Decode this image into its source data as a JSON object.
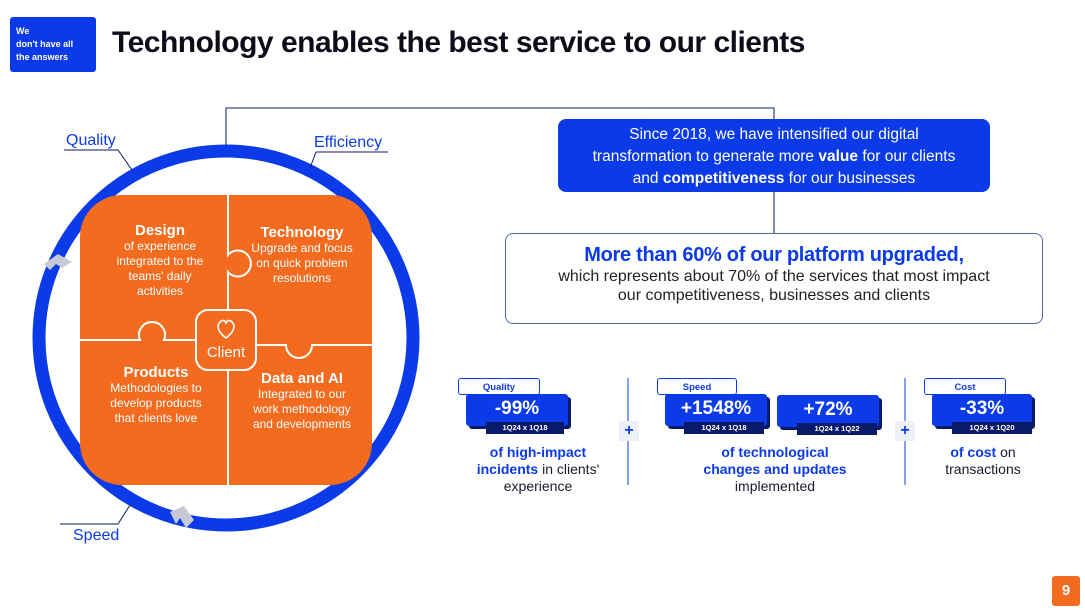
{
  "badge": {
    "line1": "We",
    "line2": "don't have all",
    "line3": "the answers"
  },
  "title": "Technology enables the best service to our clients",
  "circle": {
    "labels": {
      "quality": "Quality",
      "efficiency": "Efficiency",
      "speed": "Speed"
    },
    "center": "Client",
    "pieces": {
      "design": {
        "heading": "Design",
        "l1": "of experience",
        "l2": "integrated to the",
        "l3": "teams' daily",
        "l4": "activities"
      },
      "technology": {
        "heading": "Technology",
        "l1": "Upgrade and focus",
        "l2": "on quick problem",
        "l3": "resolutions"
      },
      "products": {
        "heading": "Products",
        "l1": "Methodologies to",
        "l2": "develop products",
        "l3": "that clients love"
      },
      "data_ai": {
        "heading": "Data and AI",
        "l1": "Integrated to our",
        "l2": "work methodology",
        "l3": "and developments"
      }
    }
  },
  "intro": {
    "line1": "Since 2018, we have intensified our digital",
    "line2_pre": "transformation to generate more",
    "line2_bold": "value",
    "line2_post": "for our clients",
    "line3_pre": "and",
    "line3_bold": "competitiveness",
    "line3_post": "for our businesses"
  },
  "upgrade": {
    "heading": "More than 60% of our platform upgraded,",
    "line1": "which represents about 70% of the services that most impact",
    "line2": "our competitiveness, businesses and clients"
  },
  "kpis": {
    "quality": {
      "tag": "Quality",
      "value": "-99%",
      "period": "1Q24 x 1Q18",
      "d_bold1": "of high-impact",
      "d_bold2": "incidents",
      "d_rest2": "in clients'",
      "d_line3": "experience"
    },
    "speed": {
      "tag": "Speed",
      "value1": "+1548%",
      "period1": "1Q24 x 1Q18",
      "value2": "+72%",
      "period2": "1Q24 x 1Q22",
      "d_bold1": "of technological",
      "d_bold2": "changes and updates",
      "d_line3": "implemented"
    },
    "cost": {
      "tag": "Cost",
      "value": "-33%",
      "period": "1Q24 x 1Q20",
      "d_bold1": "of cost",
      "d_rest1": "on",
      "d_line2": "transactions"
    },
    "plus": "+"
  },
  "page_number": "9",
  "colors": {
    "blue": "#0b3be8",
    "orange": "#f26b1f",
    "navy": "#0a1a6a"
  }
}
